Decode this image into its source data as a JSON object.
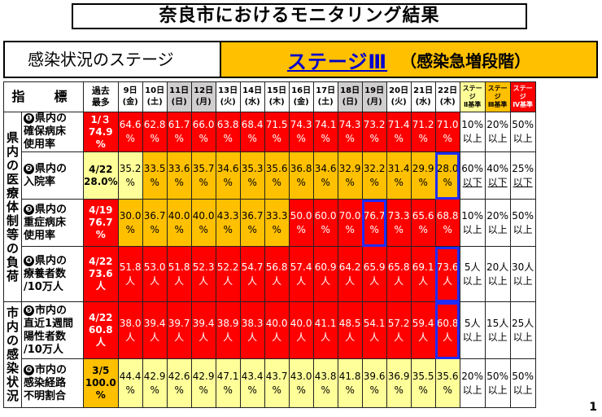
{
  "title": "奈良市におけるモニタリング結果",
  "stage": {
    "label": "感染状況のステージ",
    "value": "ステージⅢ",
    "description": "（感染急増段階）"
  },
  "table": {
    "header": {
      "indicator": "指　標",
      "past_max": "過去\n最多",
      "dates": [
        {
          "label": "9日\n(金)",
          "gray": false
        },
        {
          "label": "10日\n(土)",
          "gray": false
        },
        {
          "label": "11日\n(日)",
          "gray": true
        },
        {
          "label": "12日\n(月)",
          "gray": true
        },
        {
          "label": "13日\n(火)",
          "gray": false
        },
        {
          "label": "14日\n(水)",
          "gray": false
        },
        {
          "label": "15日\n(木)",
          "gray": false
        },
        {
          "label": "16日\n(金)",
          "gray": false
        },
        {
          "label": "17日\n(土)",
          "gray": false
        },
        {
          "label": "18日\n(日)",
          "gray": true
        },
        {
          "label": "19日\n(月)",
          "gray": true
        },
        {
          "label": "20日\n(火)",
          "gray": false
        },
        {
          "label": "21日\n(水)",
          "gray": false
        },
        {
          "label": "22日\n(木)",
          "gray": false
        }
      ],
      "standards": [
        "ステージ\nⅡ基準",
        "ステージ\nⅢ基準",
        "ステージ\nⅣ基準"
      ]
    },
    "groups": [
      {
        "label": "県\n内\nの\n医\n療\n体\n制\n等\nの\n負\n荷",
        "rows": 4
      },
      {
        "label": "市\n内\nの\n感\n染\n状\n況",
        "rows": 2
      }
    ],
    "rows": [
      {
        "num": "❶",
        "label": "県内の\n確保病床\n使用率",
        "past": "1/３\n74.9\n%",
        "past_color": "red",
        "values": [
          "64.6\n%",
          "62.8\n%",
          "61.7\n%",
          "66.0\n%",
          "63.8\n%",
          "68.4\n%",
          "71.5\n%",
          "74.3\n%",
          "74.1\n%",
          "74.3\n%",
          "73.2\n%",
          "71.4\n%",
          "71.2\n%",
          "71.0\n%"
        ],
        "colors": [
          "red",
          "red",
          "red",
          "red",
          "red",
          "red",
          "red",
          "red",
          "red",
          "red",
          "red",
          "red",
          "red",
          "red"
        ],
        "highlight": [],
        "thresholds": [
          {
            "line1": "10%",
            "line2": "以上",
            "u": false
          },
          {
            "line1": "20%",
            "line2": "以上",
            "u": false
          },
          {
            "line1": "50%",
            "line2": "以上",
            "u": false
          }
        ]
      },
      {
        "num": "❷",
        "label": "県内の\n入院率",
        "past": "4/22\n28.0%",
        "past_color": "yellow",
        "values": [
          "35.2\n%",
          "33.5\n%",
          "33.6\n%",
          "35.7\n%",
          "34.6\n%",
          "35.3\n%",
          "35.6\n%",
          "36.8\n%",
          "34.6\n%",
          "32.9\n%",
          "32.2\n%",
          "31.4\n%",
          "29.9\n%",
          "28.0\n%"
        ],
        "colors": [
          "yellow",
          "orange",
          "orange",
          "orange",
          "orange",
          "orange",
          "orange",
          "orange",
          "orange",
          "orange",
          "orange",
          "orange",
          "orange",
          "orange"
        ],
        "highlight": [
          13
        ],
        "thresholds": [
          {
            "line1": "60%",
            "line2": "以下",
            "u": true
          },
          {
            "line1": "40%",
            "line2": "以下",
            "u": true
          },
          {
            "line1": "25%",
            "line2": "以下",
            "u": true
          }
        ]
      },
      {
        "num": "❸",
        "label": "県内の\n重症病床\n使用率",
        "past": "4/19\n76.7\n%",
        "past_color": "red",
        "values": [
          "30.0\n%",
          "36.7\n%",
          "40.0\n%",
          "40.0\n%",
          "43.3\n%",
          "36.7\n%",
          "33.3\n%",
          "50.0\n%",
          "60.0\n%",
          "70.0\n%",
          "76.7\n%",
          "73.3\n%",
          "65.6\n%",
          "68.8\n%"
        ],
        "colors": [
          "orange",
          "orange",
          "orange",
          "orange",
          "orange",
          "orange",
          "orange",
          "red",
          "red",
          "red",
          "red",
          "red",
          "red",
          "red"
        ],
        "highlight": [
          10
        ],
        "thresholds": [
          {
            "line1": "10%",
            "line2": "以上",
            "u": false
          },
          {
            "line1": "20%",
            "line2": "以上",
            "u": false
          },
          {
            "line1": "50%",
            "line2": "以上",
            "u": false
          }
        ]
      },
      {
        "num": "❹",
        "label": "県内の\n療養者数\n/10万人",
        "past": "4/22\n73.6\n人",
        "past_color": "red",
        "values": [
          "51.8\n人",
          "53.0\n人",
          "51.8\n人",
          "52.3\n人",
          "52.2\n人",
          "54.7\n人",
          "56.8\n人",
          "57.4\n人",
          "60.9\n人",
          "64.2\n人",
          "65.9\n人",
          "65.8\n人",
          "69.1\n人",
          "73.6\n人"
        ],
        "colors": [
          "red",
          "red",
          "red",
          "red",
          "red",
          "red",
          "red",
          "red",
          "red",
          "red",
          "red",
          "red",
          "red",
          "red"
        ],
        "highlight": [
          13
        ],
        "thresholds": [
          {
            "line1": "5人",
            "line2": "以上",
            "u": false
          },
          {
            "line1": "20人",
            "line2": "以上",
            "u": false
          },
          {
            "line1": "30人",
            "line2": "以上",
            "u": false
          }
        ]
      },
      {
        "num": "❺",
        "label": "市内の\n直近1週間\n陽性者数\n/10万人",
        "past": "4/22\n60.8\n人",
        "past_color": "red",
        "values": [
          "38.0\n人",
          "39.4\n人",
          "39.7\n人",
          "39.4\n人",
          "38.9\n人",
          "38.3\n人",
          "40.0\n人",
          "40.0\n人",
          "41.1\n人",
          "48.5\n人",
          "54.1\n人",
          "57.2\n人",
          "59.4\n人",
          "60.8\n人"
        ],
        "colors": [
          "red",
          "red",
          "red",
          "red",
          "red",
          "red",
          "red",
          "red",
          "red",
          "red",
          "red",
          "red",
          "red",
          "red"
        ],
        "highlight": [
          13
        ],
        "thresholds": [
          {
            "line1": "5人",
            "line2": "以上",
            "u": false
          },
          {
            "line1": "15人",
            "line2": "以上",
            "u": false
          },
          {
            "line1": "25人",
            "line2": "以上",
            "u": false
          }
        ]
      },
      {
        "num": "❻",
        "label": "市内の\n感染経路\n不明割合",
        "past": "3/5\n100.0\n%",
        "past_color": "orange",
        "values": [
          "44.4\n%",
          "42.9\n%",
          "42.6\n%",
          "42.9\n%",
          "47.1\n%",
          "43.4\n%",
          "43.7\n%",
          "43.0\n%",
          "43.8\n%",
          "41.8\n%",
          "39.6\n%",
          "36.9\n%",
          "35.5\n%",
          "35.6\n%"
        ],
        "colors": [
          "yellow",
          "yellow",
          "yellow",
          "yellow",
          "yellow",
          "yellow",
          "yellow",
          "yellow",
          "yellow",
          "yellow",
          "yellow",
          "yellow",
          "yellow",
          "yellow"
        ],
        "highlight": [],
        "thresholds": [
          {
            "line1": "20%",
            "line2": "以上",
            "u": false
          },
          {
            "line1": "50%",
            "line2": "以上",
            "u": false
          },
          {
            "line1": "50%",
            "line2": "以上",
            "u": false
          }
        ]
      }
    ]
  },
  "page_number": "1"
}
